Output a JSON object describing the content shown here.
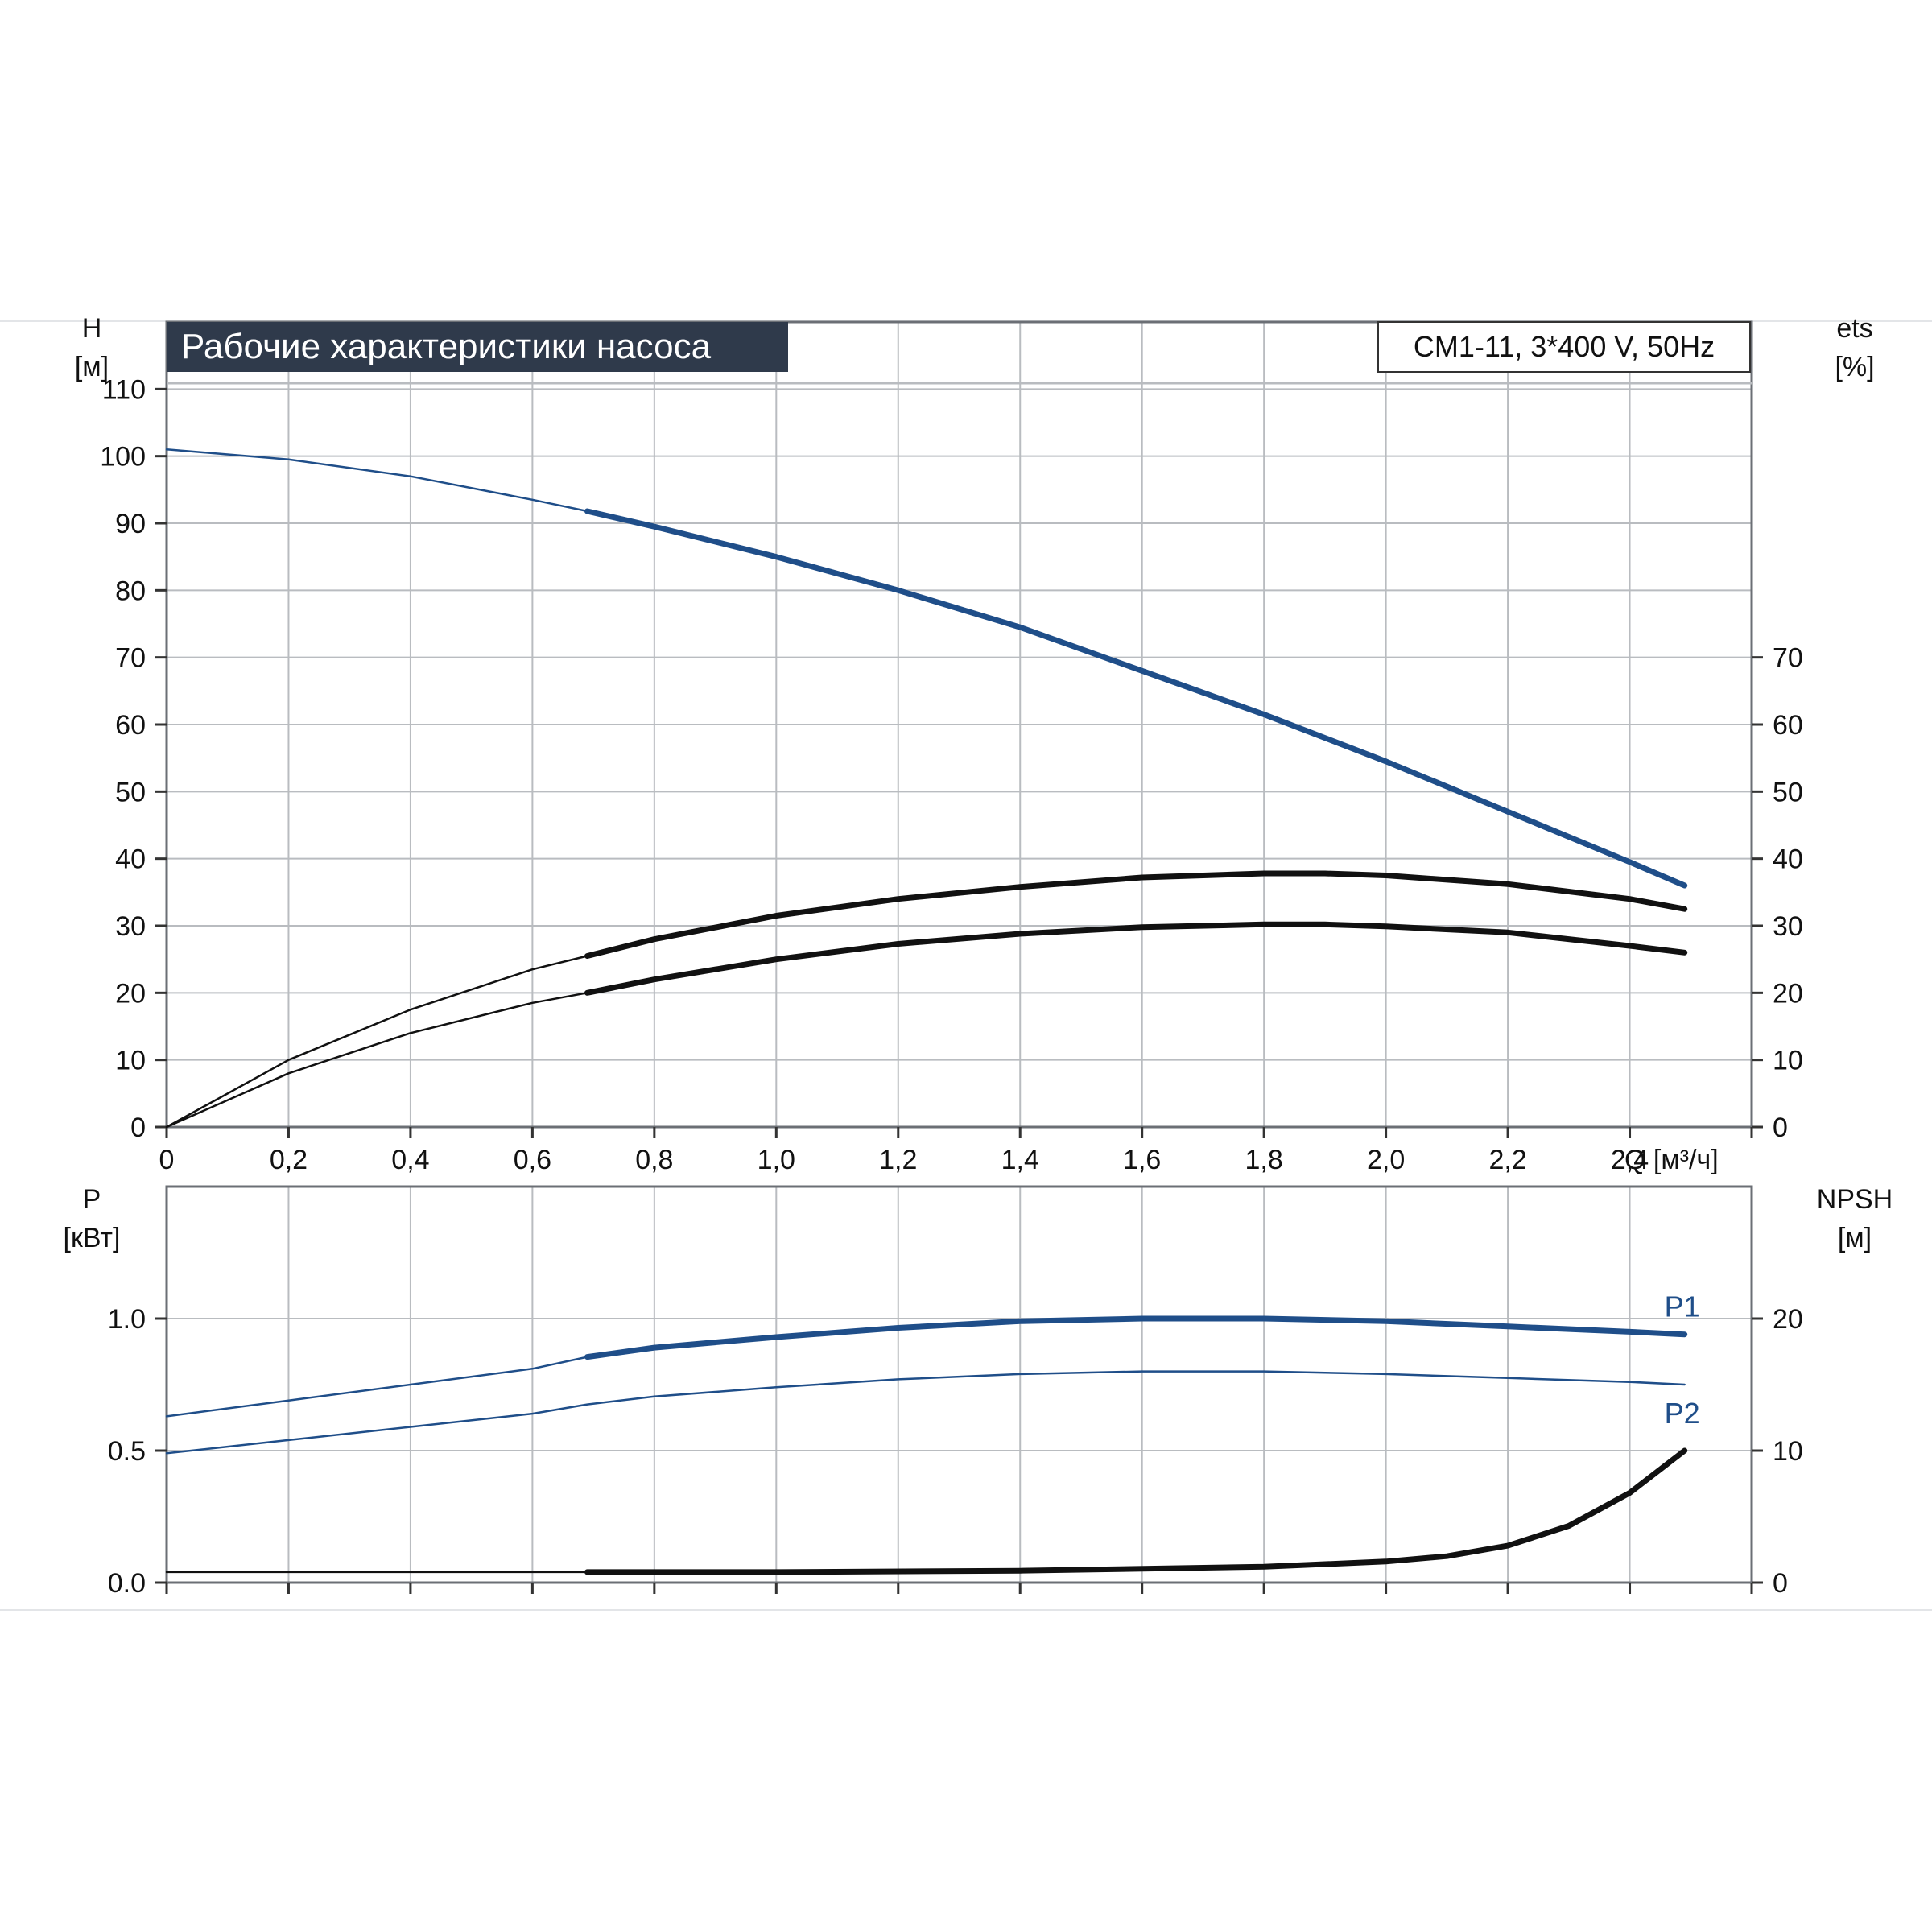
{
  "title": "Рабочие характеристики насоса",
  "model_label": "CM1-11, 3*400 V, 50Hz",
  "colors": {
    "blue": "#1f4e89",
    "black": "#111111",
    "grid": "#b9bcc0",
    "title_bg": "#2f3a4b",
    "title_text": "#ffffff"
  },
  "chart_data": [
    {
      "type": "line",
      "panel": "top",
      "grid": true,
      "left_axis": {
        "label_line1": "H",
        "label_line2": "[м]",
        "range": [
          0,
          120
        ],
        "ticks": [
          0,
          10,
          20,
          30,
          40,
          50,
          60,
          70,
          80,
          90,
          100,
          110
        ]
      },
      "right_axis": {
        "label_line1": "ets",
        "label_line2": "[%]",
        "range": [
          0,
          120
        ],
        "ticks": [
          0,
          10,
          20,
          30,
          40,
          50,
          60,
          70
        ]
      },
      "x_axis": {
        "label": "Q [м³/ч]",
        "range": [
          0,
          2.6
        ],
        "ticks": [
          0,
          0.2,
          0.4,
          0.6,
          0.8,
          1.0,
          1.2,
          1.4,
          1.6,
          1.8,
          2.0,
          2.2,
          2.4
        ],
        "tick_labels": [
          "0",
          "0,2",
          "0,4",
          "0,6",
          "0,8",
          "1,0",
          "1,2",
          "1,4",
          "1,6",
          "1,8",
          "2,0",
          "2,2",
          "2,4"
        ]
      },
      "series": [
        {
          "id": "head",
          "axis": "left",
          "color": "blue",
          "bold_from": 0.69,
          "x": [
            0,
            0.2,
            0.4,
            0.6,
            0.69,
            0.8,
            1.0,
            1.2,
            1.4,
            1.6,
            1.8,
            2.0,
            2.2,
            2.4,
            2.49
          ],
          "y": [
            101,
            99.5,
            97,
            93.5,
            91.8,
            89.5,
            85,
            80,
            74.5,
            68,
            61.5,
            54.5,
            47,
            39.5,
            36
          ]
        },
        {
          "id": "efficiency-upper",
          "axis": "right",
          "color": "black",
          "bold_from": 0.69,
          "x": [
            0,
            0.2,
            0.4,
            0.6,
            0.69,
            0.8,
            1.0,
            1.2,
            1.4,
            1.6,
            1.8,
            1.9,
            2.0,
            2.2,
            2.4,
            2.49
          ],
          "y": [
            0,
            10,
            17.5,
            23.5,
            25.5,
            28,
            31.5,
            34,
            35.8,
            37.2,
            37.8,
            37.8,
            37.5,
            36.2,
            34,
            32.5
          ]
        },
        {
          "id": "efficiency-lower",
          "axis": "right",
          "color": "black",
          "bold_from": 0.69,
          "x": [
            0,
            0.2,
            0.4,
            0.6,
            0.69,
            0.8,
            1.0,
            1.2,
            1.4,
            1.6,
            1.8,
            1.9,
            2.0,
            2.2,
            2.4,
            2.49
          ],
          "y": [
            0,
            8,
            14,
            18.5,
            20,
            22,
            25,
            27.3,
            28.8,
            29.8,
            30.2,
            30.2,
            29.9,
            29,
            27,
            26
          ]
        }
      ]
    },
    {
      "type": "line",
      "panel": "bottom",
      "grid": true,
      "left_axis": {
        "label_line1": "P",
        "label_line2": "[кВт]",
        "range": [
          0,
          1.5
        ],
        "ticks": [
          0,
          0.5,
          1.0
        ],
        "tick_labels": [
          "0.0",
          "0.5",
          "1.0"
        ]
      },
      "right_axis": {
        "label_line1": "NPSH",
        "label_line2": "[м]",
        "range": [
          0,
          30
        ],
        "ticks": [
          0,
          10,
          20
        ],
        "tick_labels": [
          "0",
          "10",
          "20"
        ]
      },
      "x_axis": {
        "range": [
          0,
          2.6
        ]
      },
      "series": [
        {
          "id": "p1",
          "name": "P1",
          "axis": "left",
          "color": "blue",
          "bold_from": 0.69,
          "x": [
            0,
            0.2,
            0.4,
            0.6,
            0.69,
            0.8,
            1.0,
            1.2,
            1.4,
            1.6,
            1.8,
            2.0,
            2.2,
            2.4,
            2.49
          ],
          "y": [
            0.63,
            0.69,
            0.75,
            0.81,
            0.855,
            0.89,
            0.93,
            0.965,
            0.99,
            1.0,
            1.0,
            0.99,
            0.97,
            0.95,
            0.94
          ]
        },
        {
          "id": "p2",
          "name": "P2",
          "axis": "left",
          "color": "blue",
          "bold_from": 99,
          "x": [
            0,
            0.2,
            0.4,
            0.6,
            0.69,
            0.8,
            1.0,
            1.2,
            1.4,
            1.6,
            1.8,
            2.0,
            2.2,
            2.4,
            2.49
          ],
          "y": [
            0.49,
            0.54,
            0.59,
            0.64,
            0.675,
            0.705,
            0.74,
            0.77,
            0.79,
            0.8,
            0.8,
            0.79,
            0.775,
            0.76,
            0.75
          ]
        },
        {
          "id": "npsh",
          "axis": "right",
          "color": "black",
          "bold_from": 0.69,
          "x": [
            0,
            0.69,
            1.0,
            1.4,
            1.8,
            2.0,
            2.1,
            2.2,
            2.3,
            2.4,
            2.49
          ],
          "y": [
            0.8,
            0.8,
            0.8,
            0.9,
            1.2,
            1.6,
            2.0,
            2.8,
            4.3,
            6.8,
            10
          ]
        }
      ]
    }
  ]
}
